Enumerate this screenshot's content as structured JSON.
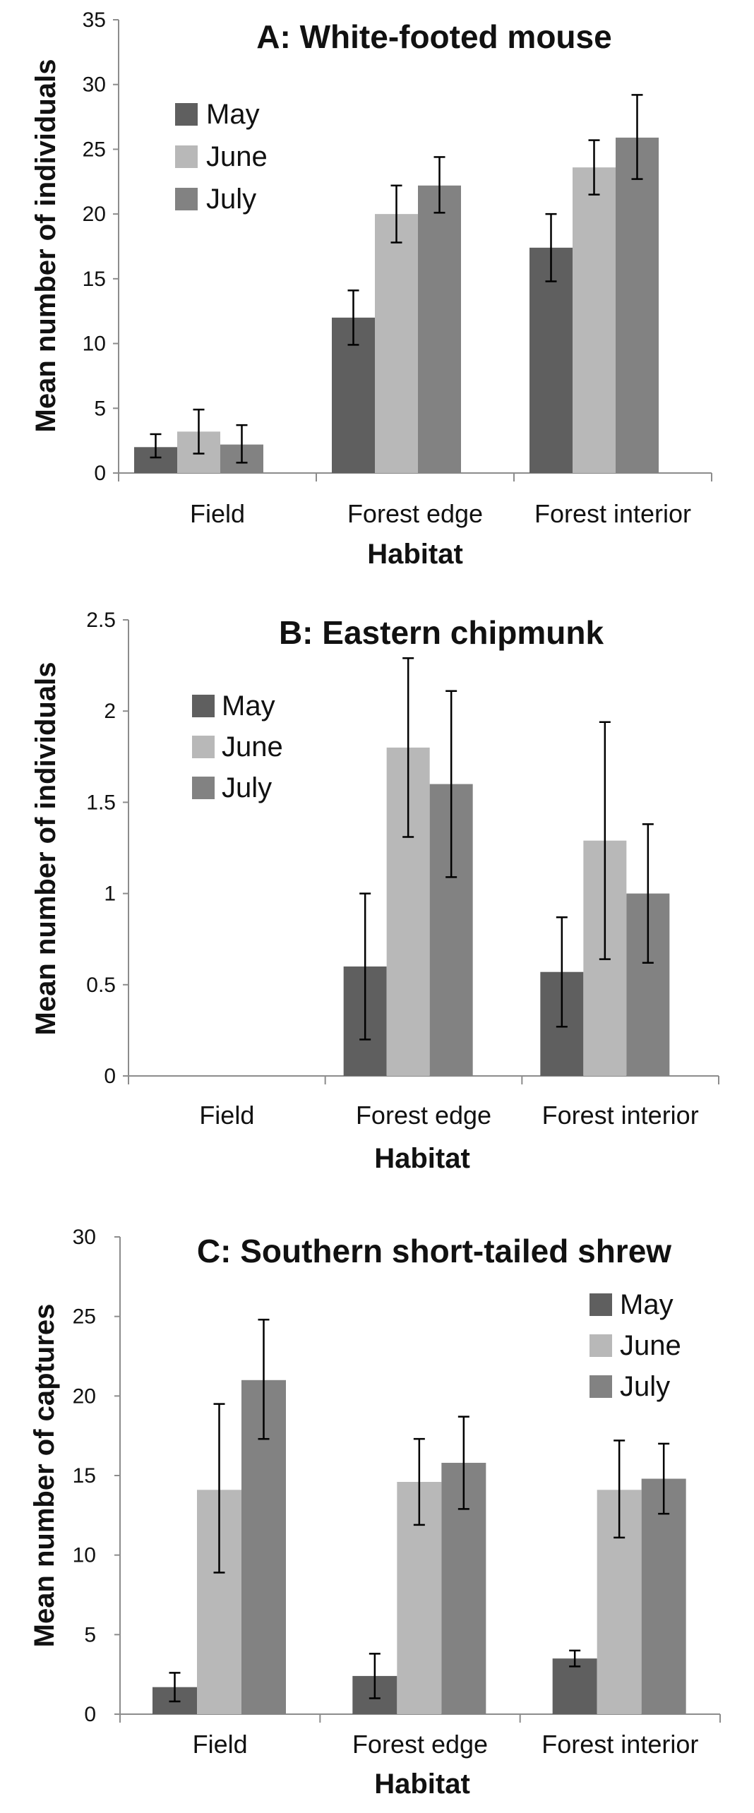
{
  "colors": {
    "May": "#5f5f5f",
    "June": "#b8b8b8",
    "July": "#828282"
  },
  "chart_data": [
    {
      "type": "bar",
      "title": "A: White-footed mouse",
      "xlabel": "Habitat",
      "ylabel": "Mean number of individuals",
      "categories": [
        "Field",
        "Forest edge",
        "Forest interior"
      ],
      "ylim": [
        0,
        35
      ],
      "yticks": [
        0,
        5,
        10,
        15,
        20,
        25,
        30,
        35
      ],
      "tick_labels": [
        "0",
        "5",
        "10",
        "15",
        "20",
        "25",
        "30",
        "35"
      ],
      "legend_position": "top-left",
      "series": [
        {
          "name": "May",
          "values": [
            2.0,
            12.0,
            17.4
          ],
          "error_low": [
            1.2,
            9.9,
            14.8
          ],
          "error_high": [
            3.0,
            14.1,
            20.0
          ]
        },
        {
          "name": "June",
          "values": [
            3.2,
            20.0,
            23.6
          ],
          "error_low": [
            1.5,
            17.8,
            21.5
          ],
          "error_high": [
            4.9,
            22.2,
            25.7
          ]
        },
        {
          "name": "July",
          "values": [
            2.2,
            22.2,
            25.9
          ],
          "error_low": [
            0.8,
            20.1,
            22.7
          ],
          "error_high": [
            3.7,
            24.4,
            29.2
          ]
        }
      ]
    },
    {
      "type": "bar",
      "title": "B: Eastern chipmunk",
      "xlabel": "Habitat",
      "ylabel": "Mean number of individuals",
      "categories": [
        "Field",
        "Forest edge",
        "Forest interior"
      ],
      "ylim": [
        0,
        2.5
      ],
      "yticks": [
        0,
        0.5,
        1,
        1.5,
        2,
        2.5
      ],
      "tick_labels": [
        "0",
        "0.5",
        "1",
        "1.5",
        "2",
        "2.5"
      ],
      "legend_position": "top-left",
      "series": [
        {
          "name": "May",
          "values": [
            0,
            0.6,
            0.57
          ],
          "error_low": [
            null,
            0.2,
            0.27
          ],
          "error_high": [
            null,
            1.0,
            0.87
          ]
        },
        {
          "name": "June",
          "values": [
            0,
            1.8,
            1.29
          ],
          "error_low": [
            null,
            1.31,
            0.64
          ],
          "error_high": [
            null,
            2.29,
            1.94
          ]
        },
        {
          "name": "July",
          "values": [
            0,
            1.6,
            1.0
          ],
          "error_low": [
            null,
            1.09,
            0.62
          ],
          "error_high": [
            null,
            2.11,
            1.38
          ]
        }
      ]
    },
    {
      "type": "bar",
      "title": "C: Southern short-tailed shrew",
      "xlabel": "Habitat",
      "ylabel": "Mean number of captures",
      "categories": [
        "Field",
        "Forest edge",
        "Forest interior"
      ],
      "ylim": [
        0,
        30
      ],
      "yticks": [
        0,
        5,
        10,
        15,
        20,
        25,
        30
      ],
      "tick_labels": [
        "0",
        "5",
        "10",
        "15",
        "20",
        "25",
        "30"
      ],
      "legend_position": "top-right",
      "series": [
        {
          "name": "May",
          "values": [
            1.7,
            2.4,
            3.5
          ],
          "error_low": [
            0.8,
            1.0,
            3.0
          ],
          "error_high": [
            2.6,
            3.8,
            4.0
          ]
        },
        {
          "name": "June",
          "values": [
            14.1,
            14.6,
            14.1
          ],
          "error_low": [
            8.9,
            11.9,
            11.1
          ],
          "error_high": [
            19.5,
            17.3,
            17.2
          ]
        },
        {
          "name": "July",
          "values": [
            21.0,
            15.8,
            14.8
          ],
          "error_low": [
            17.3,
            12.9,
            12.6
          ],
          "error_high": [
            24.8,
            18.7,
            17.0
          ]
        }
      ]
    }
  ]
}
